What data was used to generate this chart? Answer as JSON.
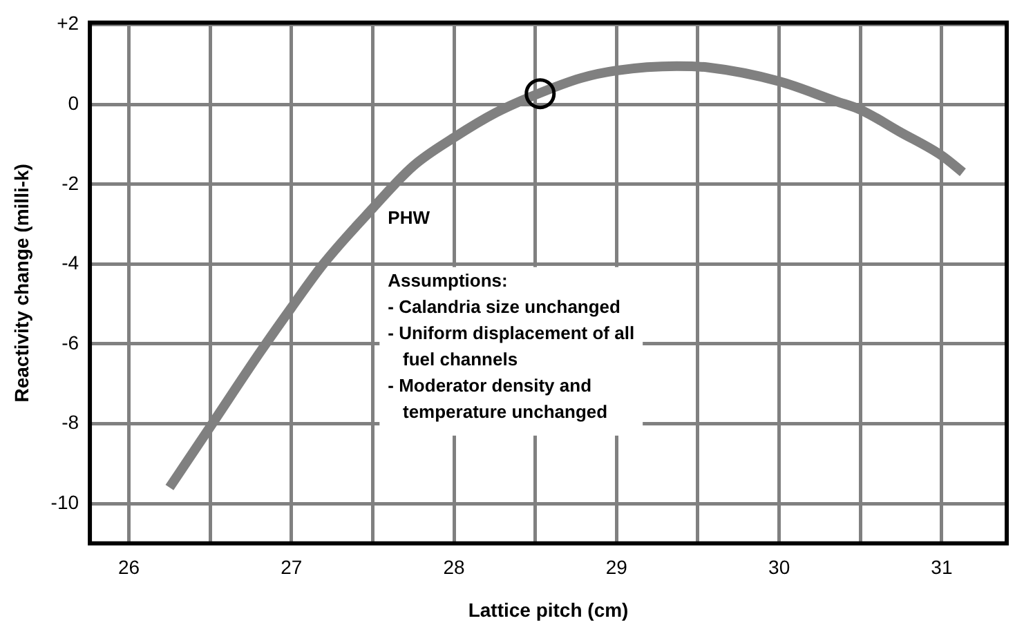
{
  "chart_data": {
    "type": "line",
    "xlabel": "Lattice pitch (cm)",
    "ylabel": "Reactivity change (milli-k)",
    "xlim": [
      25.76,
      31.4
    ],
    "ylim": [
      -11,
      2.05
    ],
    "xticks": [
      26,
      {
        "value": 26.5,
        "label": null
      },
      27,
      {
        "value": 27.5,
        "label": null
      },
      28,
      {
        "value": 28.5,
        "label": null
      },
      29,
      {
        "value": 29.5,
        "label": null
      },
      30,
      {
        "value": 30.5,
        "label": null
      },
      31
    ],
    "yticks": [
      -10,
      -8,
      -6,
      -4,
      -2,
      0,
      {
        "value": 2,
        "label": "+2"
      }
    ],
    "grid": true,
    "series": [
      {
        "type": "line",
        "color": "#808080",
        "marker": "none",
        "x": [
          26.25,
          26.5,
          26.81,
          27,
          27.2,
          27.5,
          27.75,
          28,
          28.26,
          28.5,
          28.78,
          29,
          29.37,
          29.56,
          30,
          30.35,
          30.5,
          30.74,
          31,
          31.13
        ],
        "values": [
          -9.6,
          -8.08,
          -6.19,
          -5.09,
          -3.98,
          -2.6,
          -1.54,
          -0.83,
          -0.2,
          0.24,
          0.66,
          0.85,
          0.96,
          0.93,
          0.58,
          0.08,
          -0.13,
          -0.68,
          -1.28,
          -1.7
        ]
      },
      {
        "type": "scatter",
        "color": "#000000",
        "marker": "circle",
        "x": [
          28.53
        ],
        "values": [
          0.27
        ]
      }
    ],
    "annotations": [
      "PHW",
      "Assumptions:\n- Calandria size unchanged\n- Uniform displacement of all\n   fuel channels\n- Moderator density and\n   temperature unchanged"
    ]
  }
}
